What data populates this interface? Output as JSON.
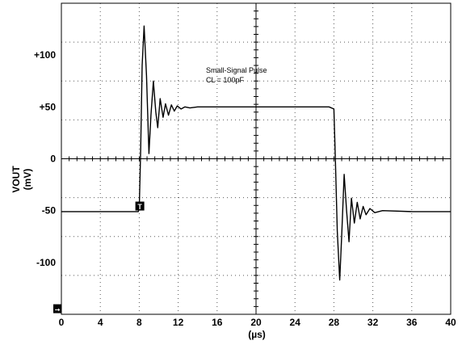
{
  "chart_data": {
    "type": "line",
    "title": "",
    "annotations": [
      "Small-Signal Pulse",
      "CL = 100pF"
    ],
    "xlabel": "(µs)",
    "ylabel": [
      "VOUT",
      "(mV)"
    ],
    "xlim": [
      0,
      40
    ],
    "ylim": [
      -150,
      150
    ],
    "x_ticks": [
      0,
      4,
      8,
      12,
      16,
      20,
      24,
      28,
      32,
      36,
      40
    ],
    "x_tick_labels": [
      "0",
      "4",
      "8",
      "12",
      "16",
      "20",
      "24",
      "28",
      "32",
      "36",
      "40"
    ],
    "y_ticks": [
      100,
      50,
      0,
      -50,
      -100
    ],
    "y_tick_labels": [
      "+100",
      "+50",
      "0",
      "-50",
      "-100"
    ],
    "grid": true,
    "markers": [
      {
        "label": "T",
        "kind": "trigger",
        "x": 8.1,
        "y": -46
      },
      {
        "label": "→",
        "kind": "ground-reference",
        "x": 0,
        "y": -145
      }
    ],
    "series": [
      {
        "x": [
          0,
          7.9,
          8.0,
          8.15,
          8.3,
          8.5,
          8.75,
          9.0,
          9.2,
          9.45,
          9.7,
          9.9,
          10.15,
          10.45,
          10.7,
          11.0,
          11.3,
          11.6,
          11.9,
          12.3,
          12.7,
          13.2,
          14,
          16,
          20,
          24,
          27.5,
          28.0,
          28.15,
          28.35,
          28.6,
          28.8,
          29.05,
          29.3,
          29.55,
          29.8,
          30.1,
          30.4,
          30.7,
          31.0,
          31.3,
          31.7,
          32.2,
          33,
          36,
          40
        ],
        "values": [
          -51,
          -51,
          -48,
          10,
          90,
          128,
          80,
          5,
          42,
          75,
          45,
          30,
          58,
          40,
          53,
          42,
          52,
          46,
          51,
          48,
          50,
          49,
          50,
          50,
          50,
          50,
          50,
          48,
          0,
          -70,
          -117,
          -75,
          -15,
          -50,
          -80,
          -38,
          -62,
          -42,
          -58,
          -46,
          -54,
          -48,
          -52,
          -50,
          -51,
          -51
        ]
      }
    ]
  }
}
